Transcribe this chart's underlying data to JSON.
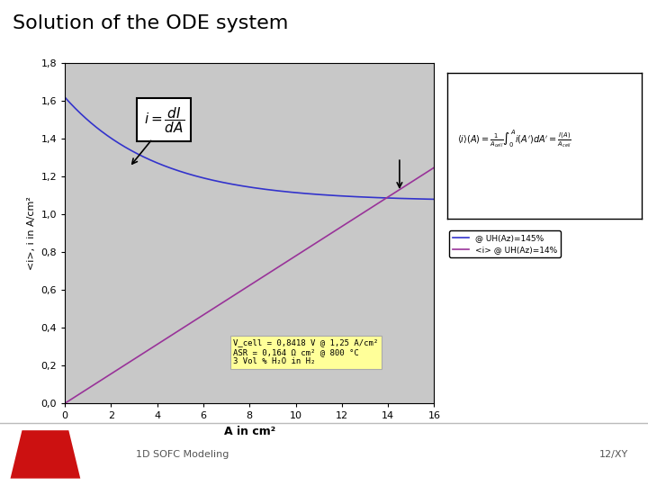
{
  "title": "Solution of the ODE system",
  "xlabel": "A in cm²",
  "ylabel": "<i>, i in A/cm²",
  "xlim": [
    0,
    16
  ],
  "ylim": [
    0.0,
    1.8
  ],
  "xticks": [
    0,
    2,
    4,
    6,
    8,
    10,
    12,
    14,
    16
  ],
  "yticks": [
    0.0,
    0.2,
    0.4,
    0.6,
    0.8,
    1.0,
    1.2,
    1.4,
    1.6,
    1.8
  ],
  "ytick_labels": [
    "0,0",
    "0,2",
    "0,4",
    "0,6",
    "0,8",
    "1,0",
    "1,2",
    "1,4",
    "1,6",
    "1,8"
  ],
  "xtick_labels": [
    "0",
    "2",
    "4",
    "6",
    "8",
    "10",
    "12",
    "14",
    "16"
  ],
  "plot_bg_color": "#c8c8c8",
  "fig_bg_color": "#ffffff",
  "blue_line_color": "#3333cc",
  "purple_line_color": "#993399",
  "legend_label1": "@ UH(Az)=145%",
  "legend_label2": "<i> @ UH(Az)=14%",
  "annotation_text": "V_cell = 0,8418 V @ 1,25 A/cm²\nASR = 0,164 Ω cm² @ 800 °C\n3 Vol % H₂O in H₂",
  "annotation_bg": "#ffff99",
  "footer_left": "1D SOFC Modeling",
  "footer_right": "12/XY",
  "title_fontsize": 16,
  "axis_fontsize": 8,
  "tick_fontsize": 8,
  "footer_bg": "#e8e8e8"
}
